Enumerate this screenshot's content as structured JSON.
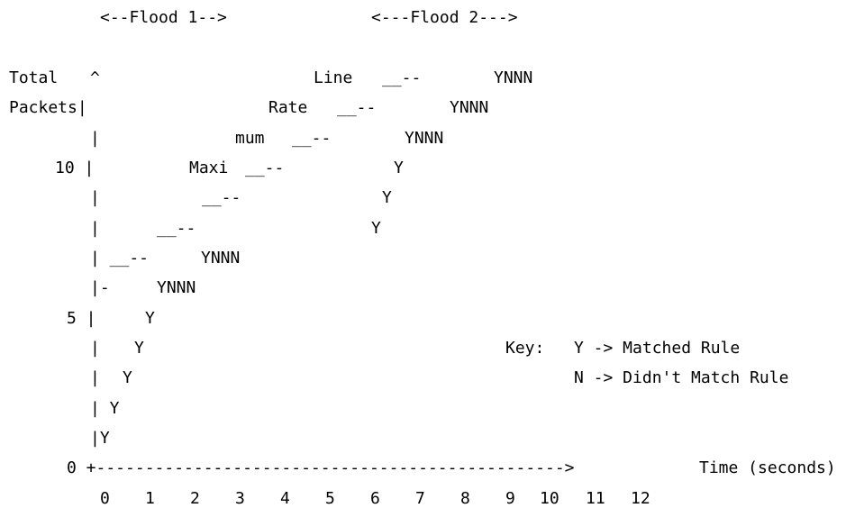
{
  "diagram": {
    "title_lines": [
      "<--Flood 1-->",
      "<---Flood 2--->"
    ],
    "axis": {
      "y_label": [
        "Total",
        "Packets"
      ],
      "y_ticks": [
        "10",
        "5",
        "0"
      ],
      "x_label": "Time (seconds)",
      "x_ticks": [
        "0",
        "1",
        "2",
        "3",
        "4",
        "5",
        "6",
        "7",
        "8",
        "9",
        "10",
        "11",
        "12"
      ]
    },
    "legend": {
      "title": "Key:",
      "entries": [
        {
          "symbol": "Y",
          "meaning": "Matched Rule"
        },
        {
          "symbol": "N",
          "meaning": "Didn't Match Rule"
        }
      ]
    },
    "rate_label": [
      "Line",
      "Rate",
      "mum",
      "Maxi"
    ]
  },
  "lines": [
    {
      "id": "flood1-label",
      "text": "<--Flood 1-->"
    },
    {
      "id": "flood2-label",
      "text": "<---Flood 2--->"
    },
    {
      "id": "row-line-total",
      "text": "Total"
    },
    {
      "id": "row-line-caret",
      "text": "^"
    },
    {
      "id": "row-line-word",
      "text": "Line"
    },
    {
      "id": "row-line-dash",
      "text": "__--"
    },
    {
      "id": "row-line-ynnn",
      "text": "YNNN"
    },
    {
      "id": "row-rate-packets",
      "text": "Packets|"
    },
    {
      "id": "row-rate-word",
      "text": "Rate"
    },
    {
      "id": "row-rate-dash",
      "text": "__--"
    },
    {
      "id": "row-rate-ynnn",
      "text": "YNNN"
    },
    {
      "id": "row-mum-bar",
      "text": "|"
    },
    {
      "id": "row-mum-word",
      "text": "mum"
    },
    {
      "id": "row-mum-dash",
      "text": "__--"
    },
    {
      "id": "row-mum-ynnn",
      "text": "YNNN"
    },
    {
      "id": "row-maxi-tick",
      "text": "10 |"
    },
    {
      "id": "row-maxi-word",
      "text": "Maxi"
    },
    {
      "id": "row-maxi-dash",
      "text": "__--"
    },
    {
      "id": "row-maxi-y",
      "text": "Y"
    },
    {
      "id": "row-r5-bar",
      "text": "|"
    },
    {
      "id": "row-r5-dash",
      "text": "__--"
    },
    {
      "id": "row-r5-y",
      "text": "Y"
    },
    {
      "id": "row-r6-bar",
      "text": "|"
    },
    {
      "id": "row-r6-dash",
      "text": "__--"
    },
    {
      "id": "row-r6-y",
      "text": "Y"
    },
    {
      "id": "row-r7-bar",
      "text": "| __--"
    },
    {
      "id": "row-r7-ynnn",
      "text": "YNNN"
    },
    {
      "id": "row-r8-bar",
      "text": "|-"
    },
    {
      "id": "row-r8-ynnn",
      "text": "YNNN"
    },
    {
      "id": "row-r9-tick",
      "text": "5 |"
    },
    {
      "id": "row-r9-y",
      "text": "Y"
    },
    {
      "id": "row-r10-bar",
      "text": "|"
    },
    {
      "id": "row-r10-y",
      "text": "Y"
    },
    {
      "id": "row-r10-key",
      "text": "Key:"
    },
    {
      "id": "row-r10-key1",
      "text": "Y -> Matched Rule"
    },
    {
      "id": "row-r11-bar",
      "text": "|"
    },
    {
      "id": "row-r11-y",
      "text": "Y"
    },
    {
      "id": "row-r11-key2",
      "text": "N -> Didn't Match Rule"
    },
    {
      "id": "row-r12-bar",
      "text": "| Y"
    },
    {
      "id": "row-r13-bar",
      "text": "|Y"
    },
    {
      "id": "row-axis-zero",
      "text": "0 +------------------------------------------------>"
    },
    {
      "id": "row-axis-label",
      "text": "Time (seconds)"
    },
    {
      "id": "x-0",
      "text": "0"
    },
    {
      "id": "x-1",
      "text": "1"
    },
    {
      "id": "x-2",
      "text": "2"
    },
    {
      "id": "x-3",
      "text": "3"
    },
    {
      "id": "x-4",
      "text": "4"
    },
    {
      "id": "x-5",
      "text": "5"
    },
    {
      "id": "x-6",
      "text": "6"
    },
    {
      "id": "x-7",
      "text": "7"
    },
    {
      "id": "x-8",
      "text": "8"
    },
    {
      "id": "x-9",
      "text": "9"
    },
    {
      "id": "x-10",
      "text": "10"
    },
    {
      "id": "x-11",
      "text": "11"
    },
    {
      "id": "x-12",
      "text": "12"
    }
  ]
}
